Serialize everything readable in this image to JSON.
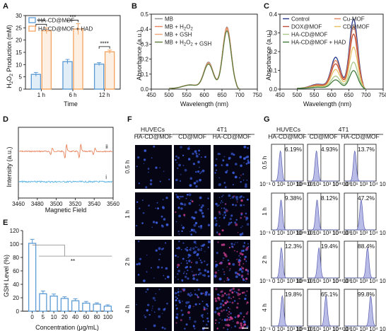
{
  "panels": {
    "A": {
      "label": "A",
      "chart_data": {
        "type": "bar",
        "categories": [
          "1 h",
          "6 h",
          "12 h"
        ],
        "series": [
          {
            "name": "HA-CD@MOF",
            "values": [
              6.0,
              11.2,
              10.2
            ],
            "errors": [
              0.8,
              0.9,
              0.6
            ],
            "color": "#5b9bd5"
          },
          {
            "name": "HA-CD@MOF + HAD",
            "values": [
              23.8,
              24.5,
              15.2
            ],
            "errors": [
              1.2,
              2.2,
              0.7
            ],
            "color": "#f4a460"
          }
        ],
        "xlabel": "Time",
        "ylabel": "H2O2 Production (mM)",
        "ylim": [
          0,
          30
        ],
        "yticks": [
          "0",
          "5",
          "10",
          "15",
          "20",
          "25",
          "30"
        ],
        "significance": [
          "****",
          "***",
          "****"
        ],
        "legend_position": "top-left"
      }
    },
    "B": {
      "label": "B",
      "chart_data": {
        "type": "line",
        "xlabel": "Wavelength (nm)",
        "ylabel": "Absorbance (a.u.)",
        "xlim": [
          450,
          750
        ],
        "xticks": [
          "450",
          "500",
          "550",
          "600",
          "650",
          "700",
          "750"
        ],
        "ylim": [
          0,
          0.5
        ],
        "yticks": [
          "0.0",
          "0.1",
          "0.2",
          "0.3",
          "0.4",
          "0.5"
        ],
        "legend_position": "top-left",
        "series": [
          {
            "name": "MB",
            "color": "#8c8c8c",
            "peak": 0.41,
            "shoulder": 0.175
          },
          {
            "name": "MB + H2O2",
            "color": "#e8835c",
            "peak": 0.405,
            "shoulder": 0.17
          },
          {
            "name": "MB + GSH",
            "color": "#f0a47a",
            "peak": 0.395,
            "shoulder": 0.168
          },
          {
            "name": "MB + H2O2 + GSH",
            "color": "#5a7a3a",
            "peak": 0.385,
            "shoulder": 0.162
          }
        ]
      }
    },
    "C": {
      "label": "C",
      "chart_data": {
        "type": "line",
        "xlabel": "Wavelength (nm)",
        "ylabel": "Absorbance (a.u.)",
        "xlim": [
          450,
          750
        ],
        "xticks": [
          "450",
          "500",
          "550",
          "600",
          "650",
          "700",
          "750"
        ],
        "ylim": [
          0,
          0.4
        ],
        "yticks": [
          "0.0",
          "0.1",
          "0.2",
          "0.3",
          "0.4"
        ],
        "legend_position": "top",
        "series": [
          {
            "name": "Control",
            "color": "#26358c",
            "peak": 0.37,
            "shoulder": 0.165
          },
          {
            "name": "Cu-MOF",
            "color": "#e8835c",
            "peak": 0.33,
            "shoulder": 0.148
          },
          {
            "name": "DOX@MOF",
            "color": "#c1503a",
            "peak": 0.29,
            "shoulder": 0.13
          },
          {
            "name": "CD@MOF",
            "color": "#e8c060",
            "peak": 0.22,
            "shoulder": 0.1
          },
          {
            "name": "HA-CD@MOF",
            "color": "#a9c98a",
            "peak": 0.14,
            "shoulder": 0.065
          },
          {
            "name": "HA-CD@MOF + HAD",
            "color": "#3f7a3a",
            "peak": 0.095,
            "shoulder": 0.045
          }
        ]
      }
    },
    "D": {
      "label": "D",
      "chart_data": {
        "type": "line",
        "xlabel": "Magnetic Field",
        "ylabel": "Intensity (a.u.)",
        "xlim": [
          3460,
          3560
        ],
        "xticks": [
          "3460",
          "3480",
          "3500",
          "3520",
          "3540",
          "3560"
        ],
        "series": [
          {
            "name": "ii",
            "color": "#e8835c"
          },
          {
            "name": "i",
            "color": "#5ab4e5"
          }
        ]
      }
    },
    "E": {
      "label": "E",
      "chart_data": {
        "type": "bar",
        "categories": [
          "0",
          "5",
          "10",
          "20",
          "40",
          "60",
          "80",
          "100"
        ],
        "values": [
          101,
          26,
          22.5,
          19,
          15.5,
          12,
          10.5,
          7.5
        ],
        "errors": [
          6,
          4,
          3,
          2.5,
          3,
          2.5,
          2,
          2
        ],
        "color": "#5b9bd5",
        "xlabel": "Concentration (μg/mL)",
        "ylabel": "GSH Level (%)",
        "ylim": [
          0,
          120
        ],
        "yticks": [
          "0",
          "20",
          "40",
          "60",
          "80",
          "100",
          "120"
        ],
        "significance": "**"
      }
    },
    "F": {
      "label": "F",
      "group_left": "HUVECs",
      "group_right": "4T1",
      "columns": [
        "HA-CD@MOF",
        "CD@MOF",
        "HA-CD@MOF"
      ],
      "rows": [
        "0.5 h",
        "1 h",
        "2 h",
        "4 h"
      ]
    },
    "G": {
      "label": "G",
      "group_left": "HUVECs",
      "group_right": "4T1",
      "columns": [
        "HA-CD@MOF",
        "CD@MOF",
        "HA-CD@MOF"
      ],
      "rows": [
        "0.5 h",
        "1 h",
        "2 h",
        "4 h"
      ],
      "percentages": [
        [
          "6.19%",
          "4.93%",
          "13.7%"
        ],
        [
          "9.38%",
          "8.12%",
          "47.2%"
        ],
        [
          "12.3%",
          "19.4%",
          "88.4%"
        ],
        [
          "19.8%",
          "65.1%",
          "99.8%"
        ]
      ],
      "axis_ticks": [
        "10⁻¹",
        "0",
        "10¹",
        "10³",
        "10⁴",
        "10⁵"
      ]
    }
  }
}
